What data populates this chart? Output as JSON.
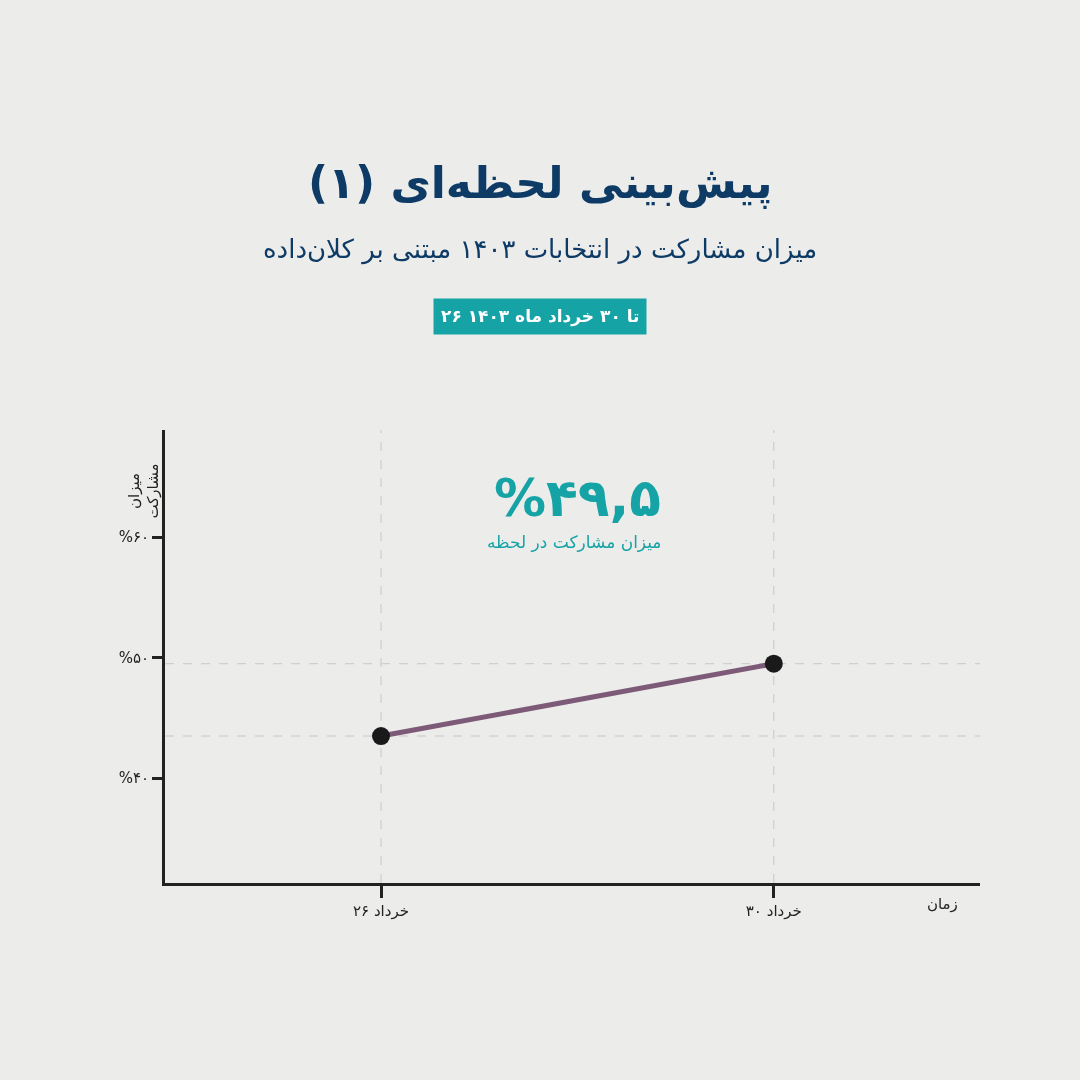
{
  "chart_data": {
    "type": "line",
    "title": "پیش‌بینی لحظه‌ای (۱)",
    "subtitle": "میزان مشارکت در انتخابات ۱۴۰۳ مبتنی بر کلان‌داده",
    "xlabel": "زمان",
    "ylabel": "میزان\nمشارکت",
    "x": [
      26,
      30
    ],
    "series": [
      {
        "color": "#7d5b78",
        "values": [
          43.5,
          49.5
        ]
      }
    ],
    "marker": "circle",
    "line_style": "solid",
    "xlim": [
      23.8,
      32.1
    ],
    "xticks": [
      {
        "value": 26,
        "label": "۲۶ خرداد"
      },
      {
        "value": 30,
        "label": "۳۰ خرداد"
      }
    ],
    "ylim": [
      31.3,
      68.9
    ],
    "yticks": [
      {
        "value": 40,
        "label": "%۴۰"
      },
      {
        "value": 50,
        "label": "%۵۰"
      },
      {
        "value": 60,
        "label": "%۶۰"
      }
    ],
    "grid": false,
    "legend": false,
    "ref_lines": [
      {
        "axis": "x",
        "value": 26,
        "color": "#c8c8c8",
        "line_style": "dashed"
      },
      {
        "axis": "x",
        "value": 30,
        "color": "#c8c8c8",
        "line_style": "dashed"
      },
      {
        "axis": "y",
        "value": 43.5,
        "color": "#c8c8c8",
        "line_style": "dashed"
      },
      {
        "axis": "y",
        "value": 49.5,
        "color": "#c8c8c8",
        "line_style": "dashed"
      }
    ],
    "annotations": [
      "%۴۹,۵",
      "میزان مشارکت در لحظه",
      "۲۶ تا ۳۰ خرداد ماه ۱۴۰۳"
    ]
  }
}
